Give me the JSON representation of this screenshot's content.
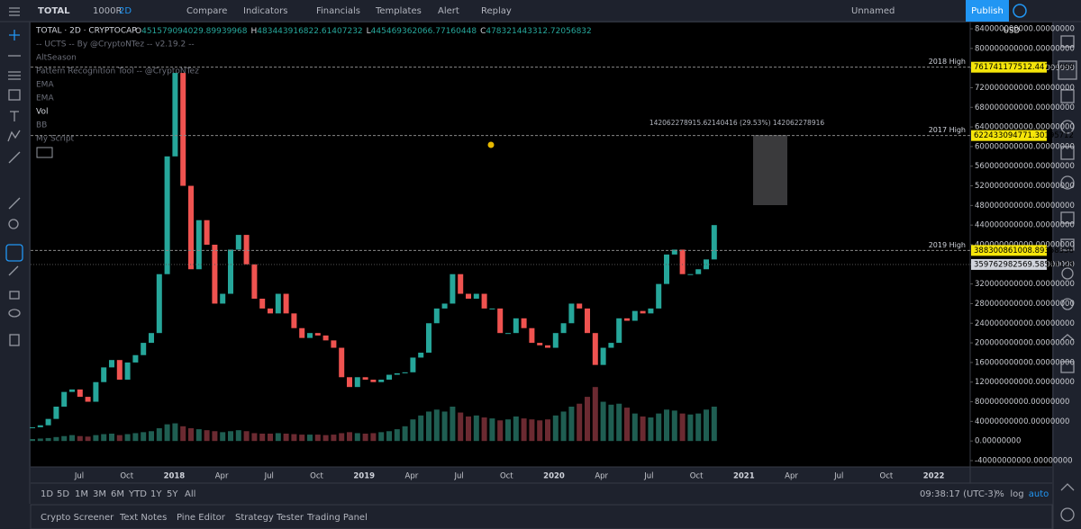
{
  "toolbar": {
    "symbol": "TOTAL",
    "interval": "1000R",
    "resolution": "2D",
    "buttons": [
      "Compare",
      "Indicators",
      "Financials",
      "Templates",
      "Alert",
      "Replay"
    ],
    "layout": "Unnamed",
    "publish": "Publish"
  },
  "legend": {
    "title": "TOTAL · 2D · CRYPTOCAP",
    "ohlc": [
      {
        "key": "O",
        "value": "451579094029.89939968"
      },
      {
        "key": "H",
        "value": "483443916822.61407232"
      },
      {
        "key": "L",
        "value": "445469362066.77160448"
      },
      {
        "key": "C",
        "value": "478321443312.72056832"
      }
    ],
    "indicators": [
      "-- UCTS -- By @CryptoNTez -- v2.19.2 --",
      "AltSeason",
      "Pattern Recognition Tool -- @CryptoNTez",
      "EMA",
      "EMA",
      "Vol",
      "BB",
      "My Script"
    ]
  },
  "chart": {
    "currency": "USD",
    "ylim": [
      -40000000000.0,
      840000000000.0
    ],
    "yticks": [
      {
        "value": 840000000000.0,
        "label": "840000000000.00000000"
      },
      {
        "value": 800000000000.0,
        "label": "800000000000.00000000"
      },
      {
        "value": 760000000000.0,
        "label": "760000000000.00000000"
      },
      {
        "value": 720000000000.0,
        "label": "720000000000.00000000"
      },
      {
        "value": 680000000000.0,
        "label": "680000000000.00000000"
      },
      {
        "value": 640000000000.0,
        "label": "640000000000.00000000"
      },
      {
        "value": 600000000000.0,
        "label": "600000000000.00000000"
      },
      {
        "value": 560000000000.0,
        "label": "560000000000.00000000"
      },
      {
        "value": 520000000000.0,
        "label": "520000000000.00000000"
      },
      {
        "value": 480000000000.0,
        "label": "480000000000.00000000"
      },
      {
        "value": 440000000000.0,
        "label": "440000000000.00000000"
      },
      {
        "value": 400000000000.0,
        "label": "400000000000.00000000"
      },
      {
        "value": 360000000000.0,
        "label": "360000000000.00000000"
      },
      {
        "value": 320000000000.0,
        "label": "320000000000.00000000"
      },
      {
        "value": 280000000000.0,
        "label": "280000000000.00000000"
      },
      {
        "value": 240000000000.0,
        "label": "240000000000.00000000"
      },
      {
        "value": 200000000000.0,
        "label": "200000000000.00000000"
      },
      {
        "value": 160000000000.0,
        "label": "160000000000.00000000"
      },
      {
        "value": 120000000000.0,
        "label": "120000000000.00000000"
      },
      {
        "value": 80000000000.0,
        "label": "80000000000.00000000"
      },
      {
        "value": 40000000000.0,
        "label": "40000000000.00000000"
      },
      {
        "value": 0,
        "label": "0.00000000"
      },
      {
        "value": -40000000000.0,
        "label": "-40000000000.00000000"
      }
    ],
    "xticks": [
      "Jul",
      "Oct",
      "2018",
      "Apr",
      "Jul",
      "Oct",
      "2019",
      "Apr",
      "Jul",
      "Oct",
      "2020",
      "Apr",
      "Jul",
      "Oct",
      "2021",
      "Apr",
      "Jul",
      "Oct",
      "2022"
    ],
    "levels": [
      {
        "name": "2018 High",
        "value": 761741177512.4476,
        "label": "761741177512.44761088"
      },
      {
        "name": "2017 High",
        "value": 622433094771.302,
        "label": "622433094771.30195712"
      },
      {
        "name": "2019 High",
        "value": 388300861008.89355,
        "label": "388300861008.89358336"
      }
    ],
    "last": {
      "value": 359762982569.58545,
      "label": "359762982569.58544128"
    },
    "measure": "142062278915.62140416 (29.53%) 142062278916",
    "close": [
      28000000000.0,
      32000000000.0,
      45000000000.0,
      70000000000.0,
      100000000000.0,
      105000000000.0,
      90000000000.0,
      80000000000.0,
      120000000000.0,
      150000000000.0,
      165000000000.0,
      125000000000.0,
      160000000000.0,
      175000000000.0,
      200000000000.0,
      220000000000.0,
      340000000000.0,
      580000000000.0,
      750000000000.0,
      520000000000.0,
      350000000000.0,
      450000000000.0,
      400000000000.0,
      280000000000.0,
      300000000000.0,
      390000000000.0,
      420000000000.0,
      360000000000.0,
      290000000000.0,
      270000000000.0,
      260000000000.0,
      300000000000.0,
      260000000000.0,
      230000000000.0,
      210000000000.0,
      220000000000.0,
      215000000000.0,
      205000000000.0,
      190000000000.0,
      130000000000.0,
      110000000000.0,
      130000000000.0,
      125000000000.0,
      120000000000.0,
      125000000000.0,
      135000000000.0,
      138000000000.0,
      140000000000.0,
      170000000000.0,
      180000000000.0,
      240000000000.0,
      270000000000.0,
      280000000000.0,
      340000000000.0,
      300000000000.0,
      290000000000.0,
      300000000000.0,
      270000000000.0,
      270000000000.0,
      220000000000.0,
      220000000000.0,
      250000000000.0,
      230000000000.0,
      200000000000.0,
      195000000000.0,
      190000000000.0,
      220000000000.0,
      240000000000.0,
      280000000000.0,
      270000000000.0,
      220000000000.0,
      155000000000.0,
      190000000000.0,
      200000000000.0,
      250000000000.0,
      245000000000.0,
      265000000000.0,
      260000000000.0,
      270000000000.0,
      320000000000.0,
      380000000000.0,
      390000000000.0,
      340000000000.0,
      340000000000.0,
      350000000000.0,
      370000000000.0,
      440000000000.0
    ],
    "volume": [
      4000000000.0,
      5000000000.0,
      6000000000.0,
      8000000000.0,
      10000000000.0,
      12000000000.0,
      10000000000.0,
      9000000000.0,
      12000000000.0,
      14000000000.0,
      15000000000.0,
      12000000000.0,
      14000000000.0,
      16000000000.0,
      18000000000.0,
      20000000000.0,
      26000000000.0,
      34000000000.0,
      36000000000.0,
      30000000000.0,
      26000000000.0,
      24000000000.0,
      22000000000.0,
      20000000000.0,
      18000000000.0,
      20000000000.0,
      22000000000.0,
      20000000000.0,
      16000000000.0,
      15000000000.0,
      15000000000.0,
      16000000000.0,
      15000000000.0,
      14000000000.0,
      13000000000.0,
      13000000000.0,
      13000000000.0,
      12000000000.0,
      13000000000.0,
      16000000000.0,
      18000000000.0,
      16000000000.0,
      15000000000.0,
      16000000000.0,
      18000000000.0,
      20000000000.0,
      24000000000.0,
      30000000000.0,
      44000000000.0,
      52000000000.0,
      60000000000.0,
      64000000000.0,
      60000000000.0,
      70000000000.0,
      58000000000.0,
      50000000000.0,
      52000000000.0,
      48000000000.0,
      46000000000.0,
      42000000000.0,
      44000000000.0,
      50000000000.0,
      46000000000.0,
      44000000000.0,
      42000000000.0,
      44000000000.0,
      52000000000.0,
      60000000000.0,
      70000000000.0,
      76000000000.0,
      90000000000.0,
      110000000000.0,
      80000000000.0,
      74000000000.0,
      76000000000.0,
      68000000000.0,
      56000000000.0,
      50000000000.0,
      48000000000.0,
      56000000000.0,
      64000000000.0,
      62000000000.0,
      56000000000.0,
      54000000000.0,
      56000000000.0,
      64000000000.0,
      70000000000.0
    ]
  },
  "bottom": {
    "ranges": [
      "1D",
      "5D",
      "1M",
      "3M",
      "6M",
      "YTD",
      "1Y",
      "5Y",
      "All"
    ],
    "clock": "09:38:17 (UTC-3)",
    "percent": "%",
    "log": "log",
    "auto": "auto"
  },
  "panel": {
    "tabs": [
      "Crypto Screener",
      "Text Notes",
      "Pine Editor",
      "Strategy Tester",
      "Trading Panel"
    ]
  }
}
